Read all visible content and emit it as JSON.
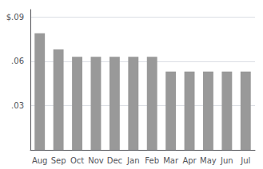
{
  "chart_data": {
    "type": "bar",
    "categories": [
      "Aug",
      "Sep",
      "Oct",
      "Nov",
      "Dec",
      "Jan",
      "Feb",
      "Mar",
      "Apr",
      "May",
      "Jun",
      "Jul"
    ],
    "values": [
      0.079,
      0.068,
      0.063,
      0.063,
      0.063,
      0.063,
      0.063,
      0.053,
      0.053,
      0.053,
      0.053,
      0.053
    ],
    "color": "#999999",
    "ylim": [
      0,
      0.095
    ],
    "yticks": [
      {
        "value": 0.03,
        "label": ".03"
      },
      {
        "value": 0.06,
        "label": ".06"
      },
      {
        "value": 0.09,
        "label": "$.09"
      }
    ],
    "grid": true
  }
}
